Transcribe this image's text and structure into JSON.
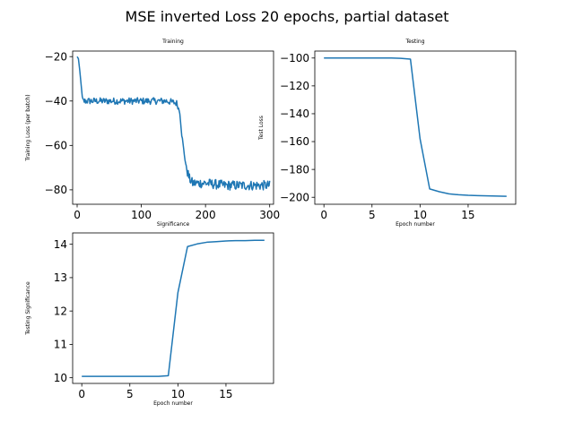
{
  "figure": {
    "suptitle": "MSE inverted Loss 20 epochs, partial dataset"
  },
  "colors": {
    "line": "#1f77b4",
    "axes": "#000000"
  },
  "chart_data": [
    {
      "id": "training",
      "type": "line",
      "title": "Training",
      "xlabel": "Significance",
      "ylabel": "Training Loss (per batch)",
      "xlim": [
        -7,
        306
      ],
      "ylim": [
        -86.5,
        -17.5
      ],
      "xticks": [
        0,
        100,
        200,
        300
      ],
      "yticks": [
        -20,
        -40,
        -60,
        -80
      ],
      "keypoints": {
        "x": [
          0,
          2,
          4,
          6,
          8,
          10,
          14,
          20,
          40,
          60,
          80,
          100,
          120,
          140,
          155,
          160,
          163,
          166,
          170,
          175,
          180,
          200,
          230,
          260,
          280,
          290,
          295,
          300
        ],
        "y": [
          -20,
          -21,
          -26,
          -32,
          -38,
          -40,
          -40,
          -40,
          -40,
          -40,
          -40,
          -40,
          -40,
          -40,
          -41,
          -45,
          -55,
          -62,
          -70,
          -75,
          -77,
          -77,
          -78,
          -78,
          -78,
          -78,
          -78,
          -78
        ]
      },
      "noise": {
        "plateau_1": 1.5,
        "plateau_2": 2.2
      }
    },
    {
      "id": "testing",
      "type": "line",
      "title": "Testing",
      "xlabel": "Epoch number",
      "ylabel": "Test Loss",
      "xlim": [
        -0.95,
        19.95
      ],
      "ylim": [
        -205,
        -95
      ],
      "xticks": [
        0,
        5,
        10,
        15
      ],
      "yticks": [
        -100,
        -120,
        -140,
        -160,
        -180,
        -200
      ],
      "x": [
        0,
        1,
        2,
        3,
        4,
        5,
        6,
        7,
        8,
        9,
        10,
        11,
        12,
        13,
        14,
        15,
        16,
        17,
        18,
        19
      ],
      "y": [
        -100,
        -100,
        -100,
        -100,
        -100,
        -100,
        -100,
        -100,
        -100.2,
        -100.8,
        -158,
        -194,
        -196,
        -197.5,
        -198.2,
        -198.6,
        -198.8,
        -199,
        -199.1,
        -199.3
      ]
    },
    {
      "id": "significance",
      "type": "line",
      "title": "",
      "xlabel": "Epoch number",
      "ylabel": "Testing Significance",
      "xlim": [
        -0.95,
        19.95
      ],
      "ylim": [
        9.83,
        14.34
      ],
      "xticks": [
        0,
        5,
        10,
        15
      ],
      "yticks": [
        10,
        11,
        12,
        13,
        14
      ],
      "x": [
        0,
        1,
        2,
        3,
        4,
        5,
        6,
        7,
        8,
        9,
        10,
        11,
        12,
        13,
        14,
        15,
        16,
        17,
        18,
        19
      ],
      "y": [
        10.04,
        10.04,
        10.04,
        10.04,
        10.04,
        10.04,
        10.04,
        10.04,
        10.04,
        10.06,
        12.55,
        13.93,
        14.01,
        14.06,
        14.08,
        14.1,
        14.11,
        14.11,
        14.12,
        14.12
      ]
    }
  ]
}
